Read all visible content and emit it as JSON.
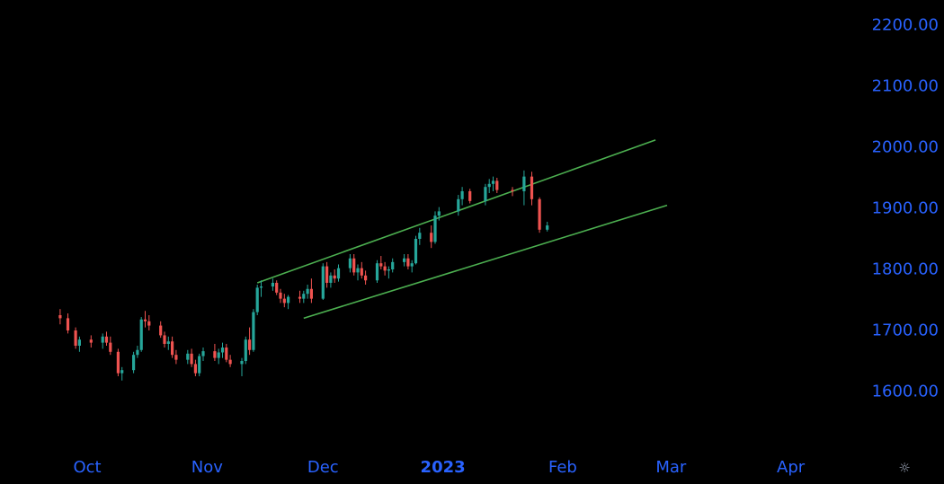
{
  "colors": {
    "up": "#26a69a",
    "down": "#ef5350",
    "channel": "#4caf50",
    "axis_text": "#2962ff",
    "background": "#000000"
  },
  "icons": {
    "settings": "gear-icon"
  },
  "settings_glyph": "☼",
  "chart_data": {
    "type": "candlestick",
    "title": "",
    "ylim": [
      1500,
      2250
    ],
    "y_ticks": [
      "1600.00",
      "1700.00",
      "1800.00",
      "1900.00",
      "2000.00",
      "2100.00",
      "2200.00"
    ],
    "x_ticks": [
      {
        "label": "Oct",
        "bold": false
      },
      {
        "label": "Nov",
        "bold": false
      },
      {
        "label": "Dec",
        "bold": false
      },
      {
        "label": "2023",
        "bold": true
      },
      {
        "label": "Feb",
        "bold": false
      },
      {
        "label": "Mar",
        "bold": false
      },
      {
        "label": "Apr",
        "bold": false
      }
    ],
    "x_tick_days": [
      0,
      31,
      61,
      92,
      123,
      151,
      182
    ],
    "candles_ohlc": [
      [
        1725,
        1735,
        1710,
        1720
      ],
      [
        1720,
        1728,
        1695,
        1700
      ],
      [
        1700,
        1705,
        1670,
        1675
      ],
      [
        1675,
        1690,
        1665,
        1685
      ],
      [
        1685,
        1692,
        1672,
        1680
      ],
      [
        1680,
        1695,
        1670,
        1690
      ],
      [
        1690,
        1698,
        1675,
        1680
      ],
      [
        1680,
        1690,
        1660,
        1665
      ],
      [
        1665,
        1670,
        1625,
        1630
      ],
      [
        1630,
        1640,
        1618,
        1635
      ],
      [
        1635,
        1665,
        1630,
        1660
      ],
      [
        1660,
        1675,
        1655,
        1668
      ],
      [
        1668,
        1722,
        1665,
        1718
      ],
      [
        1718,
        1732,
        1705,
        1715
      ],
      [
        1715,
        1725,
        1700,
        1708
      ],
      [
        1708,
        1715,
        1688,
        1692
      ],
      [
        1692,
        1698,
        1672,
        1678
      ],
      [
        1678,
        1690,
        1668,
        1682
      ],
      [
        1682,
        1690,
        1655,
        1660
      ],
      [
        1660,
        1668,
        1645,
        1652
      ],
      [
        1652,
        1668,
        1645,
        1662
      ],
      [
        1662,
        1670,
        1640,
        1645
      ],
      [
        1645,
        1652,
        1625,
        1630
      ],
      [
        1630,
        1662,
        1625,
        1658
      ],
      [
        1658,
        1672,
        1650,
        1666
      ],
      [
        1666,
        1678,
        1650,
        1655
      ],
      [
        1655,
        1670,
        1645,
        1664
      ],
      [
        1664,
        1680,
        1655,
        1672
      ],
      [
        1672,
        1678,
        1648,
        1652
      ],
      [
        1652,
        1660,
        1640,
        1645
      ],
      [
        1645,
        1655,
        1625,
        1650
      ],
      [
        1650,
        1690,
        1645,
        1685
      ],
      [
        1685,
        1705,
        1660,
        1668
      ],
      [
        1668,
        1735,
        1665,
        1730
      ],
      [
        1730,
        1775,
        1725,
        1770
      ],
      [
        1770,
        1782,
        1755,
        1772
      ],
      [
        1772,
        1785,
        1765,
        1778
      ],
      [
        1778,
        1782,
        1758,
        1762
      ],
      [
        1762,
        1768,
        1745,
        1752
      ],
      [
        1752,
        1760,
        1738,
        1745
      ],
      [
        1745,
        1758,
        1735,
        1755
      ],
      [
        1755,
        1765,
        1745,
        1752
      ],
      [
        1752,
        1765,
        1745,
        1760
      ],
      [
        1760,
        1775,
        1752,
        1768
      ],
      [
        1768,
        1785,
        1745,
        1752
      ],
      [
        1752,
        1810,
        1750,
        1805
      ],
      [
        1805,
        1812,
        1770,
        1778
      ],
      [
        1778,
        1795,
        1770,
        1790
      ],
      [
        1790,
        1800,
        1778,
        1785
      ],
      [
        1785,
        1808,
        1780,
        1802
      ],
      [
        1802,
        1825,
        1795,
        1818
      ],
      [
        1818,
        1825,
        1790,
        1795
      ],
      [
        1795,
        1808,
        1782,
        1802
      ],
      [
        1802,
        1812,
        1785,
        1790
      ],
      [
        1790,
        1798,
        1775,
        1782
      ],
      [
        1782,
        1815,
        1778,
        1810
      ],
      [
        1810,
        1822,
        1800,
        1805
      ],
      [
        1805,
        1812,
        1790,
        1798
      ],
      [
        1798,
        1805,
        1785,
        1800
      ],
      [
        1800,
        1818,
        1795,
        1812
      ],
      [
        1812,
        1825,
        1805,
        1818
      ],
      [
        1818,
        1825,
        1800,
        1805
      ],
      [
        1805,
        1815,
        1795,
        1810
      ],
      [
        1810,
        1855,
        1808,
        1850
      ],
      [
        1850,
        1868,
        1840,
        1860
      ],
      [
        1860,
        1872,
        1835,
        1845
      ],
      [
        1845,
        1895,
        1842,
        1888
      ],
      [
        1888,
        1902,
        1880,
        1895
      ],
      [
        1895,
        1922,
        1888,
        1915
      ],
      [
        1915,
        1935,
        1905,
        1928
      ],
      [
        1928,
        1932,
        1908,
        1912
      ],
      [
        1912,
        1940,
        1905,
        1935
      ],
      [
        1935,
        1948,
        1925,
        1940
      ],
      [
        1940,
        1952,
        1928,
        1945
      ],
      [
        1945,
        1950,
        1925,
        1930
      ],
      [
        1930,
        1935,
        1920,
        1928
      ],
      [
        1928,
        1962,
        1905,
        1952
      ],
      [
        1952,
        1960,
        1905,
        1915
      ],
      [
        1915,
        1918,
        1860,
        1865
      ],
      [
        1865,
        1878,
        1862,
        1872
      ]
    ],
    "candle_days": [
      -7,
      -5,
      -3,
      -2,
      1,
      4,
      5,
      6,
      8,
      9,
      12,
      13,
      14,
      15,
      16,
      19,
      20,
      21,
      22,
      23,
      26,
      27,
      28,
      29,
      30,
      33,
      34,
      35,
      36,
      37,
      40,
      41,
      42,
      43,
      44,
      45,
      48,
      49,
      50,
      51,
      52,
      55,
      56,
      57,
      58,
      61,
      62,
      63,
      64,
      65,
      68,
      69,
      70,
      71,
      72,
      75,
      76,
      77,
      78,
      79,
      82,
      83,
      84,
      85,
      86,
      89,
      90,
      91,
      96,
      97,
      99,
      103,
      104,
      105,
      106,
      110,
      113,
      115,
      117,
      119
    ],
    "channel_lines": [
      {
        "name": "upper",
        "from": [
          44,
          1778
        ],
        "to": [
          147,
          2012
        ]
      },
      {
        "name": "lower",
        "from": [
          56,
          1720
        ],
        "to": [
          150,
          1905
        ]
      }
    ]
  }
}
